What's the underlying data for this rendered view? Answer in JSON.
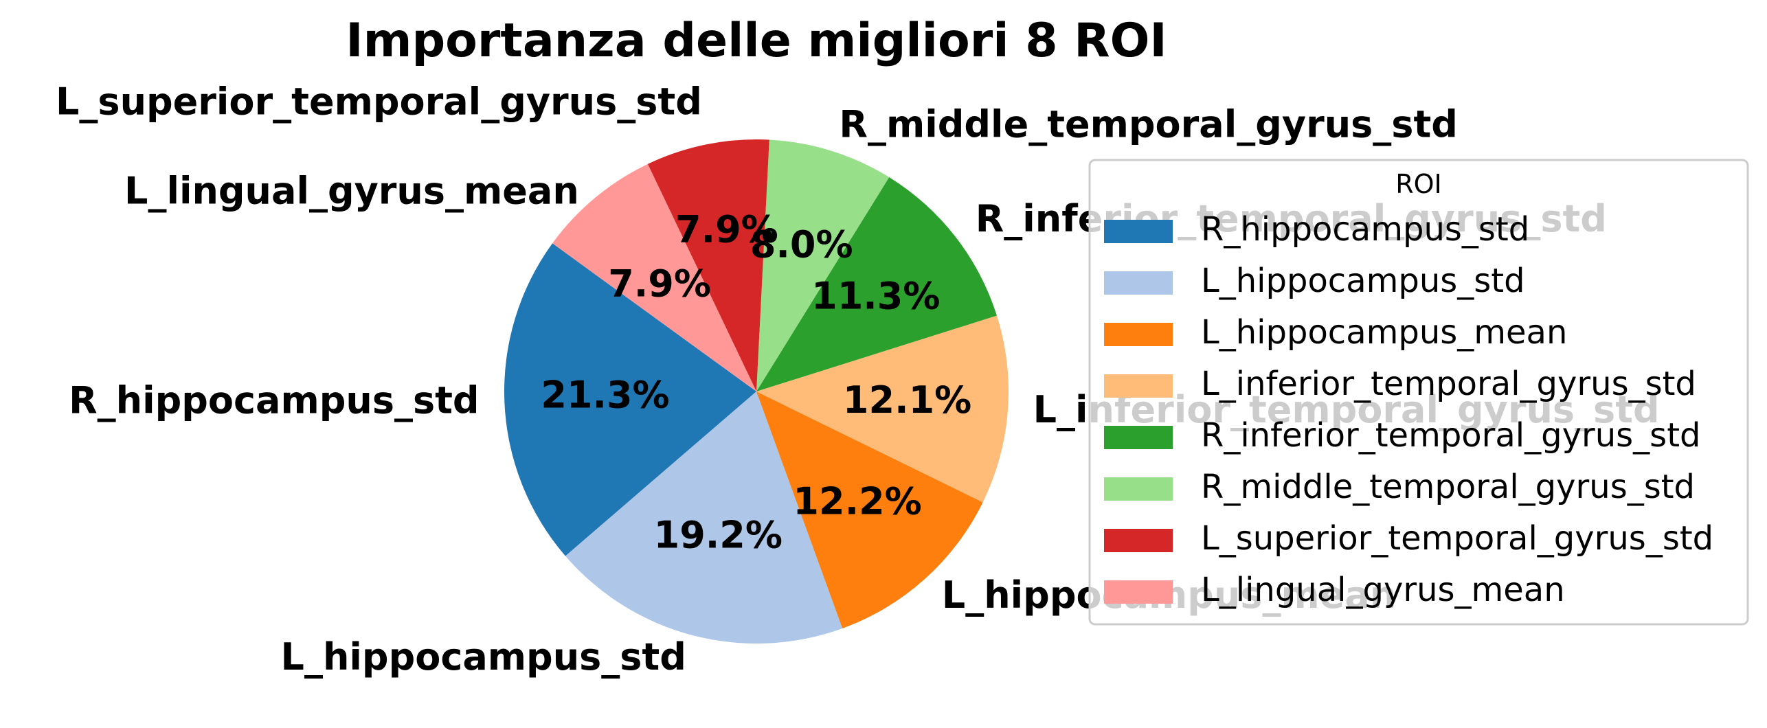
{
  "chart_data": {
    "type": "pie",
    "title": "Importanza delle migliori 8 ROI",
    "legend_title": "ROI",
    "legend_position": "right",
    "start_angle_deg": 144,
    "direction": "counterclockwise",
    "slices": [
      {
        "label": "R_hippocampus_std",
        "value": 21.3,
        "pct_label": "21.3%",
        "color": "#1f77b4"
      },
      {
        "label": "L_hippocampus_std",
        "value": 19.2,
        "pct_label": "19.2%",
        "color": "#aec7e8"
      },
      {
        "label": "L_hippocampus_mean",
        "value": 12.2,
        "pct_label": "12.2%",
        "color": "#ff7f0e"
      },
      {
        "label": "L_inferior_temporal_gyrus_std",
        "value": 12.1,
        "pct_label": "12.1%",
        "color": "#ffbb78"
      },
      {
        "label": "R_inferior_temporal_gyrus_std",
        "value": 11.3,
        "pct_label": "11.3%",
        "color": "#2ca02c"
      },
      {
        "label": "R_middle_temporal_gyrus_std",
        "value": 8.0,
        "pct_label": "8.0%",
        "color": "#98df8a"
      },
      {
        "label": "L_superior_temporal_gyrus_std",
        "value": 7.9,
        "pct_label": "7.9%",
        "color": "#d62728"
      },
      {
        "label": "L_lingual_gyrus_mean",
        "value": 7.9,
        "pct_label": "7.9%",
        "color": "#ff9896"
      }
    ]
  }
}
